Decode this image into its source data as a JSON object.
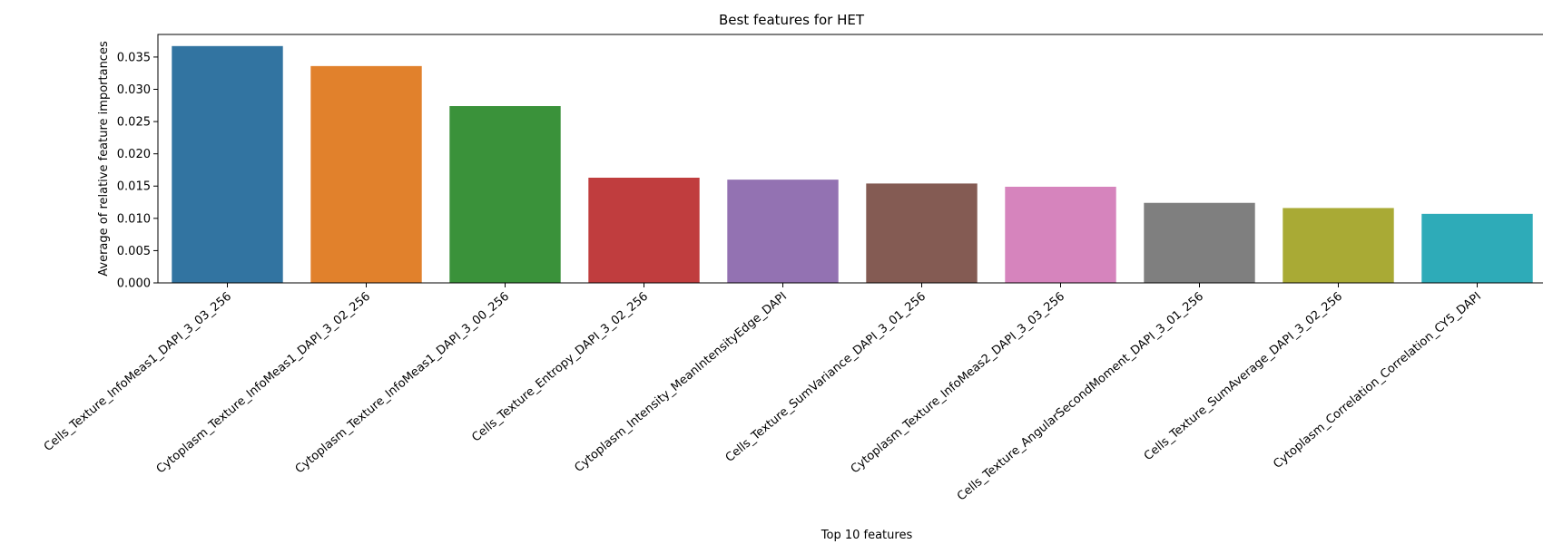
{
  "chart_data": {
    "type": "bar",
    "title": "Best features for HET",
    "xlabel": "Top 10 features",
    "ylabel": "Average of relative feature importances",
    "ylim": [
      0,
      0.0385
    ],
    "yticks": [
      "0.000",
      "0.005",
      "0.010",
      "0.015",
      "0.020",
      "0.025",
      "0.030",
      "0.035"
    ],
    "categories": [
      "Cells_Texture_InfoMeas1_DAPI_3_03_256",
      "Cytoplasm_Texture_InfoMeas1_DAPI_3_02_256",
      "Cytoplasm_Texture_InfoMeas1_DAPI_3_00_256",
      "Cells_Texture_Entropy_DAPI_3_02_256",
      "Cytoplasm_Intensity_MeanIntensityEdge_DAPI",
      "Cells_Texture_SumVariance_DAPI_3_01_256",
      "Cytoplasm_Texture_InfoMeas2_DAPI_3_03_256",
      "Cells_Texture_AngularSecondMoment_DAPI_3_01_256",
      "Cells_Texture_SumAverage_DAPI_3_02_256",
      "Cytoplasm_Correlation_Correlation_CY5_DAPI"
    ],
    "values": [
      0.0367,
      0.0336,
      0.0274,
      0.0163,
      0.016,
      0.0154,
      0.0149,
      0.0124,
      0.0116,
      0.0107
    ],
    "colors": [
      "#3274a1",
      "#e1812c",
      "#3a923a",
      "#c03d3e",
      "#9372b2",
      "#845b53",
      "#d684bd",
      "#7f7f7f",
      "#a9aa35",
      "#2eabb8"
    ],
    "grid": false,
    "legend": "none"
  }
}
